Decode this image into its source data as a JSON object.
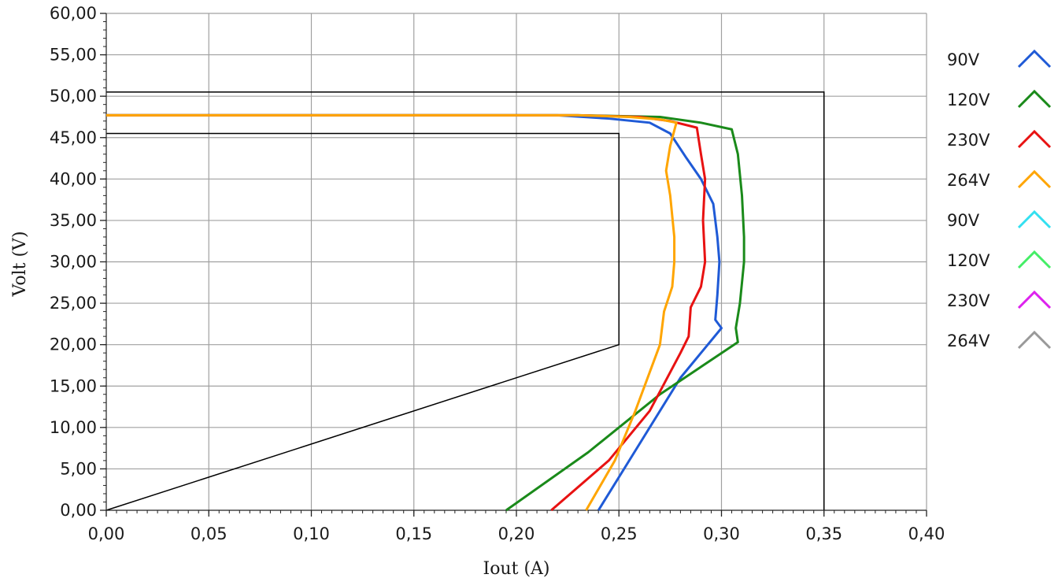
{
  "chart_data": {
    "type": "line",
    "xlabel": "Iout (A)",
    "ylabel": "Volt (V)",
    "xlim": [
      0,
      0.4
    ],
    "ylim": [
      0,
      60
    ],
    "grid": true,
    "legend_placement": "right",
    "x_ticks": [
      "0,00",
      "0,05",
      "0,10",
      "0,15",
      "0,20",
      "0,25",
      "0,30",
      "0,35",
      "0,40"
    ],
    "y_ticks": [
      "0,00",
      "5,00",
      "10,00",
      "15,00",
      "20,00",
      "25,00",
      "30,00",
      "35,00",
      "40,00",
      "45,00",
      "50,00",
      "55,00",
      "60,00"
    ],
    "reference_lines": [
      {
        "color": "#000000",
        "points": [
          [
            0,
            50.5
          ],
          [
            0.35,
            50.5
          ],
          [
            0.35,
            0
          ]
        ]
      },
      {
        "color": "#000000",
        "points": [
          [
            0,
            45.5
          ],
          [
            0.25,
            45.5
          ],
          [
            0.25,
            20
          ],
          [
            0,
            0
          ]
        ]
      }
    ],
    "series": [
      {
        "name": "90V",
        "color": "#1f5ad6",
        "points": [
          [
            0.0,
            47.7
          ],
          [
            0.22,
            47.7
          ],
          [
            0.245,
            47.3
          ],
          [
            0.265,
            46.8
          ],
          [
            0.275,
            45.5
          ],
          [
            0.283,
            42.5
          ],
          [
            0.29,
            40.0
          ],
          [
            0.296,
            37.0
          ],
          [
            0.298,
            33.0
          ],
          [
            0.299,
            30.0
          ],
          [
            0.298,
            26.0
          ],
          [
            0.297,
            23.0
          ],
          [
            0.3,
            22.0
          ],
          [
            0.28,
            16.0
          ],
          [
            0.26,
            8.0
          ],
          [
            0.24,
            0.0
          ]
        ]
      },
      {
        "name": "120V",
        "color": "#1a8a1a",
        "points": [
          [
            0.0,
            47.7
          ],
          [
            0.23,
            47.7
          ],
          [
            0.27,
            47.5
          ],
          [
            0.29,
            46.8
          ],
          [
            0.305,
            46.0
          ],
          [
            0.308,
            43.0
          ],
          [
            0.31,
            38.0
          ],
          [
            0.311,
            33.0
          ],
          [
            0.311,
            30.0
          ],
          [
            0.309,
            25.0
          ],
          [
            0.307,
            22.0
          ],
          [
            0.308,
            20.3
          ],
          [
            0.27,
            14.0
          ],
          [
            0.235,
            7.0
          ],
          [
            0.195,
            0.0
          ]
        ]
      },
      {
        "name": "230V",
        "color": "#e81212",
        "points": [
          [
            0.0,
            47.7
          ],
          [
            0.23,
            47.7
          ],
          [
            0.26,
            47.5
          ],
          [
            0.275,
            47.0
          ],
          [
            0.288,
            46.2
          ],
          [
            0.29,
            43.0
          ],
          [
            0.292,
            40.0
          ],
          [
            0.291,
            35.0
          ],
          [
            0.292,
            30.0
          ],
          [
            0.29,
            27.0
          ],
          [
            0.285,
            24.5
          ],
          [
            0.284,
            21.0
          ],
          [
            0.28,
            19.0
          ],
          [
            0.265,
            12.0
          ],
          [
            0.245,
            6.0
          ],
          [
            0.217,
            0.0
          ]
        ]
      },
      {
        "name": "264V",
        "color": "#ffa500",
        "points": [
          [
            0.0,
            47.7
          ],
          [
            0.23,
            47.7
          ],
          [
            0.255,
            47.5
          ],
          [
            0.27,
            47.2
          ],
          [
            0.278,
            46.8
          ],
          [
            0.275,
            44.0
          ],
          [
            0.273,
            41.0
          ],
          [
            0.275,
            38.0
          ],
          [
            0.277,
            33.0
          ],
          [
            0.277,
            30.0
          ],
          [
            0.276,
            27.0
          ],
          [
            0.272,
            24.0
          ],
          [
            0.27,
            20.0
          ],
          [
            0.258,
            12.0
          ],
          [
            0.248,
            6.0
          ],
          [
            0.234,
            0.0
          ]
        ]
      },
      {
        "name": "90V",
        "color": "#33e0f0",
        "points": []
      },
      {
        "name": "120V",
        "color": "#44ee66",
        "points": []
      },
      {
        "name": "230V",
        "color": "#dd22ee",
        "points": []
      },
      {
        "name": "264V",
        "color": "#999999",
        "points": []
      }
    ]
  }
}
